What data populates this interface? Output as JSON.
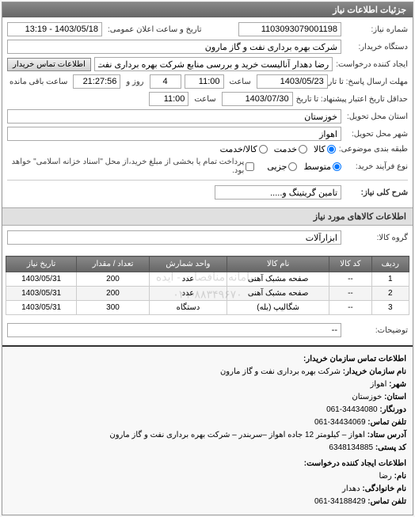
{
  "panel_title": "جزئیات اطلاعات نیاز",
  "fields": {
    "need_number_label": "شماره نیاز:",
    "need_number": "1103093079001198",
    "announce_date_label": "تاریخ و ساعت اعلان عمومی:",
    "announce_date": "1403/05/18 - 13:19",
    "buyer_org_label": "دستگاه خریدار:",
    "buyer_org": "شرکت بهره برداری نفت و گاز مارون",
    "requester_label": "ایجاد کننده درخواست:",
    "requester": "رضا دهدار آنالیست خرید و بررسی منابع شرکت بهره برداری نفت و گاز مارون",
    "contact_btn": "اطلاعات تماس خریدار",
    "deadline_label": "مهلت ارسال پاسخ: تا تاریخ",
    "deadline_date": "1403/05/23",
    "time_label": "ساعت",
    "deadline_time": "11:00",
    "days_label": "روز و",
    "days_value": "4",
    "remaining_label": "ساعت باقی مانده",
    "remaining_time": "21:27:56",
    "delivery_deadline_label": "حداقل تاریخ اعتبار پیشنهاد: تا تاریخ",
    "delivery_date": "1403/07/30",
    "delivery_time": "11:00",
    "province_label": "استان محل تحویل:",
    "province": "خوزستان",
    "city_label": "شهر محل تحویل:",
    "city": "اهواز",
    "category_label": "طبقه بندی موضوعی:",
    "cat_goods": "کالا",
    "cat_service": "خدمت",
    "cat_goods_service": "کالا/خدمت",
    "process_label": "نوع فرآیند خرید:",
    "proc_small": "متوسط",
    "proc_partial": "جزیی",
    "payment_note": "پرداخت تمام یا بخشی از مبلغ خرید،از محل \"اسناد خزانه اسلامی\" خواهد بود.",
    "desc_label": "شرح کلی نیاز:",
    "desc_value": "تامین گریتینگ و....."
  },
  "items_section_title": "اطلاعات کالاهای مورد نیاز",
  "group_label": "گروه کالا:",
  "group_value": "ابزارآلات",
  "table": {
    "columns": [
      "ردیف",
      "کد کالا",
      "نام کالا",
      "واحد شمارش",
      "تعداد / مقدار",
      "تاریخ نیاز"
    ],
    "rows": [
      [
        "1",
        "--",
        "صفحه مشبک آهنی",
        "عدد",
        "200",
        "1403/05/31"
      ],
      [
        "2",
        "--",
        "صفحه مشبک آهنی",
        "عدد",
        "200",
        "1403/05/31"
      ],
      [
        "3",
        "--",
        "شگالیپ (بله)",
        "دستگاه",
        "300",
        "1403/05/31"
      ]
    ]
  },
  "desc_footer_label": "توضیحات:",
  "desc_footer_value": "--",
  "watermark_line1": "سامانه مناقصات - ایده",
  "watermark_line2": "۰۲۱-۸۸۳۴۹۶۷۰",
  "contact": {
    "title": "اطلاعات تماس سازمان خریدار:",
    "org_label": "نام سازمان خریدار:",
    "org": "شرکت بهره برداری نفت و گاز مارون",
    "city_label": "شهر:",
    "city": "اهواز",
    "province_label": "استان:",
    "province": "خوزستان",
    "fax_label": "دورنگار:",
    "fax": "34434080-061",
    "phone_label": "تلفن تماس:",
    "phone": "34434069-061",
    "address_label": "آدرس ستاد:",
    "address": "اهواز – کیلومتر 12 جاده اهواز –سربندر – شرکت بهره برداری نفت و گاز مارون",
    "postal_label": "کد پستی:",
    "postal": "6348134885",
    "req_title": "اطلاعات ایجاد کننده درخواست:",
    "name_label": "نام:",
    "name": "رضا",
    "lname_label": "نام خانوادگی:",
    "lname": "دهدار",
    "req_phone_label": "تلفن تماس:",
    "req_phone": "34188429-061"
  }
}
